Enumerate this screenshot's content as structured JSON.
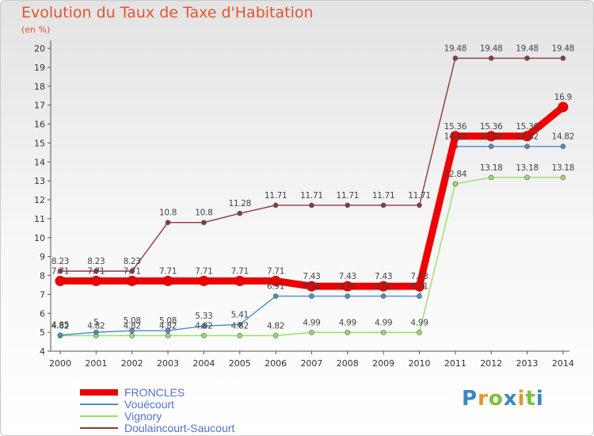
{
  "chart_data": {
    "type": "line",
    "title": "Evolution du Taux de Taxe d'Habitation",
    "unit_label": "(en %)",
    "x": [
      "2000",
      "2001",
      "2002",
      "2003",
      "2004",
      "2005",
      "2006",
      "2007",
      "2008",
      "2009",
      "2010",
      "2011",
      "2012",
      "2013",
      "2014"
    ],
    "ylim": [
      4,
      20
    ],
    "yticks": [
      "4",
      "5",
      "6",
      "7",
      "8",
      "9",
      "10",
      "11",
      "12",
      "13",
      "14",
      "15",
      "16",
      "17",
      "18",
      "19",
      "20"
    ],
    "grid": false,
    "legend_position": "bottom-left",
    "series": [
      {
        "name": "FRONCLES",
        "color": "#ee0000",
        "values": [
          7.71,
          7.71,
          7.71,
          7.71,
          7.71,
          7.71,
          7.71,
          7.43,
          7.43,
          7.43,
          7.43,
          15.36,
          15.36,
          15.36,
          16.9
        ],
        "labels": [
          "7.71",
          "7.71",
          "7.71",
          "7.71",
          "7.71",
          "7.71",
          "7.71",
          "7.43",
          "7.43",
          "7.43",
          "7.43",
          "15.36",
          "15.36",
          "15.36",
          "16.9"
        ]
      },
      {
        "name": "Vouécourt",
        "color": "#4b8ec8",
        "values": [
          4.85,
          5,
          5.08,
          5.08,
          5.33,
          5.41,
          6.91,
          6.91,
          6.91,
          6.91,
          6.91,
          14.82,
          14.82,
          14.82,
          14.82
        ],
        "labels": [
          "4.85",
          "5",
          "5.08",
          "5.08",
          "5.33",
          "5.41",
          "6.91",
          "6.91",
          "6.91",
          "6.91",
          "6.91",
          "14.82",
          "14.82",
          "14.82",
          "14.82"
        ]
      },
      {
        "name": "Vignory",
        "color": "#99dd66",
        "values": [
          4.82,
          4.82,
          4.82,
          4.82,
          4.82,
          4.82,
          4.82,
          4.99,
          4.99,
          4.99,
          4.99,
          12.84,
          13.18,
          13.18,
          13.18
        ],
        "labels": [
          "4.82",
          "4.82",
          "4.82",
          "4.82",
          "4.82",
          "4.82",
          "4.82",
          "4.99",
          "4.99",
          "4.99",
          "4.99",
          "12.84",
          "13.18",
          "13.18",
          "13.18"
        ]
      },
      {
        "name": "Doulaincourt-Saucourt",
        "color": "#8b3a3a",
        "values": [
          8.23,
          8.23,
          8.23,
          10.8,
          10.8,
          11.28,
          11.71,
          11.71,
          11.71,
          11.71,
          11.71,
          19.48,
          19.48,
          19.48,
          19.48
        ],
        "labels": [
          "8.23",
          "8.23",
          "8.23",
          "10.8",
          "10.8",
          "11.28",
          "11.71",
          "11.71",
          "11.71",
          "11.71",
          "11.71",
          "19.48",
          "19.48",
          "19.48",
          "19.48"
        ]
      }
    ]
  },
  "logo": {
    "text": "Proxiti",
    "p": "P",
    "r": "r",
    "o": "o",
    "x": "x",
    "i": "i",
    "t": "t",
    "i2": "i"
  }
}
